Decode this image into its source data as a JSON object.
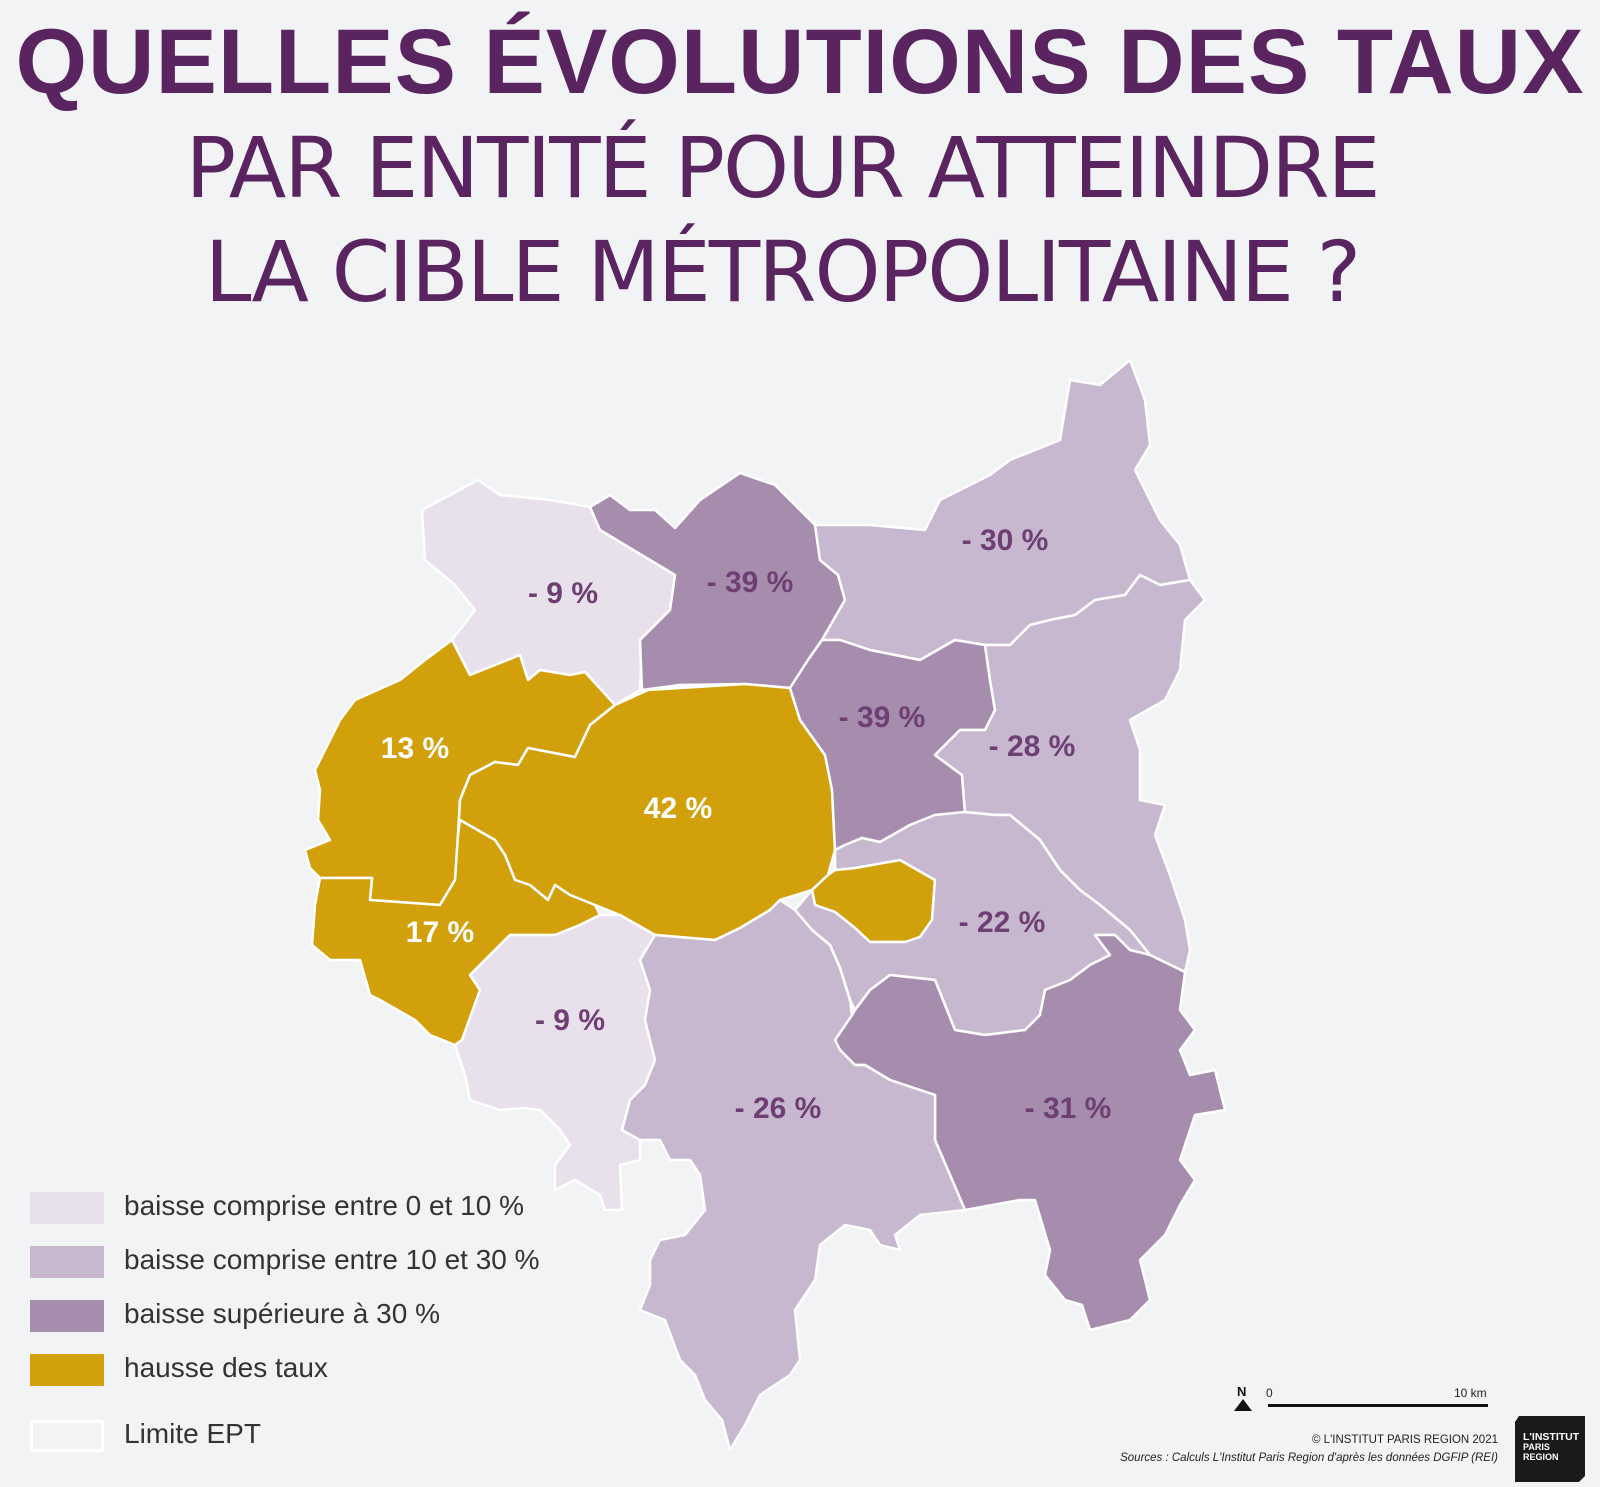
{
  "title": {
    "line1": "QUELLES ÉVOLUTIONS DES TAUX",
    "line2": "PAR ENTITÉ POUR ATTEINDRE",
    "line3": "LA CIBLE MÉTROPOLITAINE ?"
  },
  "colors": {
    "title": "#5a2461",
    "baisse_0_10": "#e8e0ea",
    "baisse_10_30": "#c8b8cf",
    "baisse_sup_30": "#a78dad",
    "hausse": "#d1a00a",
    "label_dark": "#6e3f72",
    "label_light": "#ffffff",
    "limite": "#ffffff"
  },
  "regions": [
    {
      "id": "nw-9",
      "label": "- 9 %",
      "category": "baisse_0_10"
    },
    {
      "id": "north-39",
      "label": "- 39 %",
      "category": "baisse_sup_30"
    },
    {
      "id": "ne-30",
      "label": "- 30 %",
      "category": "baisse_10_30"
    },
    {
      "id": "west-13",
      "label": "13 %",
      "category": "hausse"
    },
    {
      "id": "paris-42",
      "label": "42 %",
      "category": "hausse"
    },
    {
      "id": "center-39",
      "label": "- 39 %",
      "category": "baisse_sup_30"
    },
    {
      "id": "east-28",
      "label": "- 28 %",
      "category": "baisse_10_30"
    },
    {
      "id": "sw-17",
      "label": "17 %",
      "category": "hausse"
    },
    {
      "id": "sw-9",
      "label": "- 9 %",
      "category": "baisse_0_10"
    },
    {
      "id": "south-26",
      "label": "- 26 %",
      "category": "baisse_10_30"
    },
    {
      "id": "se-22",
      "label": "- 22 %",
      "category": "baisse_10_30"
    },
    {
      "id": "se-31",
      "label": "- 31 %",
      "category": "baisse_sup_30"
    }
  ],
  "legend": [
    {
      "label": "baisse comprise entre 0 et 10 %",
      "color": "#e8e0ea"
    },
    {
      "label": "baisse comprise entre 10 et 30 %",
      "color": "#c8b8cf"
    },
    {
      "label": "baisse supérieure à 30 %",
      "color": "#a78dad"
    },
    {
      "label": "hausse des taux",
      "color": "#d1a00a"
    },
    {
      "label": "Limite EPT",
      "color": "#ffffff"
    }
  ],
  "scale": {
    "north": "N",
    "start": "0",
    "end": "10 km"
  },
  "credit": "© L'INSTITUT PARIS REGION 2021",
  "sources": "Sources : Calculs L'Institut Paris Region d'après les données DGFIP (REI)",
  "logo": {
    "line1": "L'INSTITUT",
    "line2": "PARIS",
    "line3": "REGION"
  }
}
